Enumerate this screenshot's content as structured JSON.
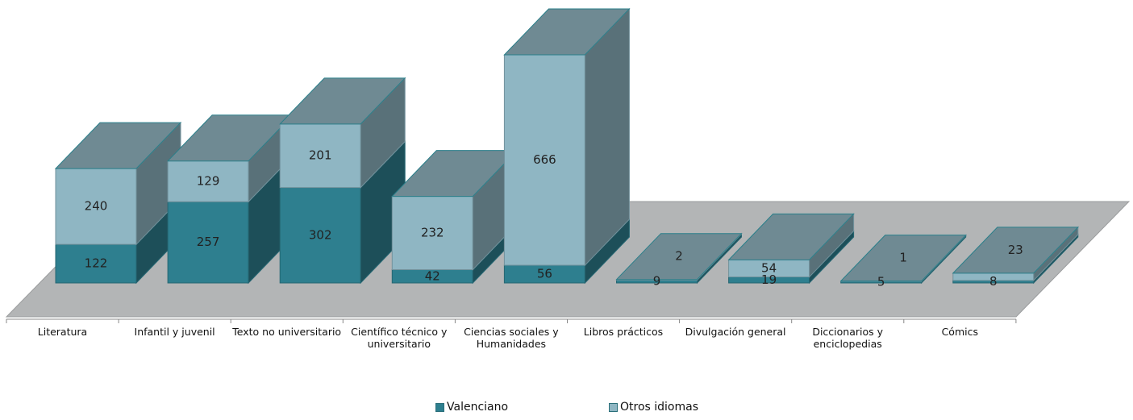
{
  "chart_data": {
    "type": "bar3d_stacked",
    "categories": [
      "Literatura",
      "Infantil y juvenil",
      "Texto no universitario",
      "Científico técnico y universitario",
      "Ciencias sociales y Humanidades",
      "Libros prácticos",
      "Divulgación general",
      "Diccionarios y enciclopedias",
      "Cómics"
    ],
    "series": [
      {
        "name": "Valenciano",
        "color": "#2e7f8f",
        "values": [
          122,
          257,
          302,
          42,
          56,
          9,
          19,
          5,
          8
        ]
      },
      {
        "name": "Otros idiomas",
        "color": "#8fb6c3",
        "values": [
          240,
          129,
          201,
          232,
          666,
          2,
          54,
          1,
          23
        ]
      }
    ]
  }
}
